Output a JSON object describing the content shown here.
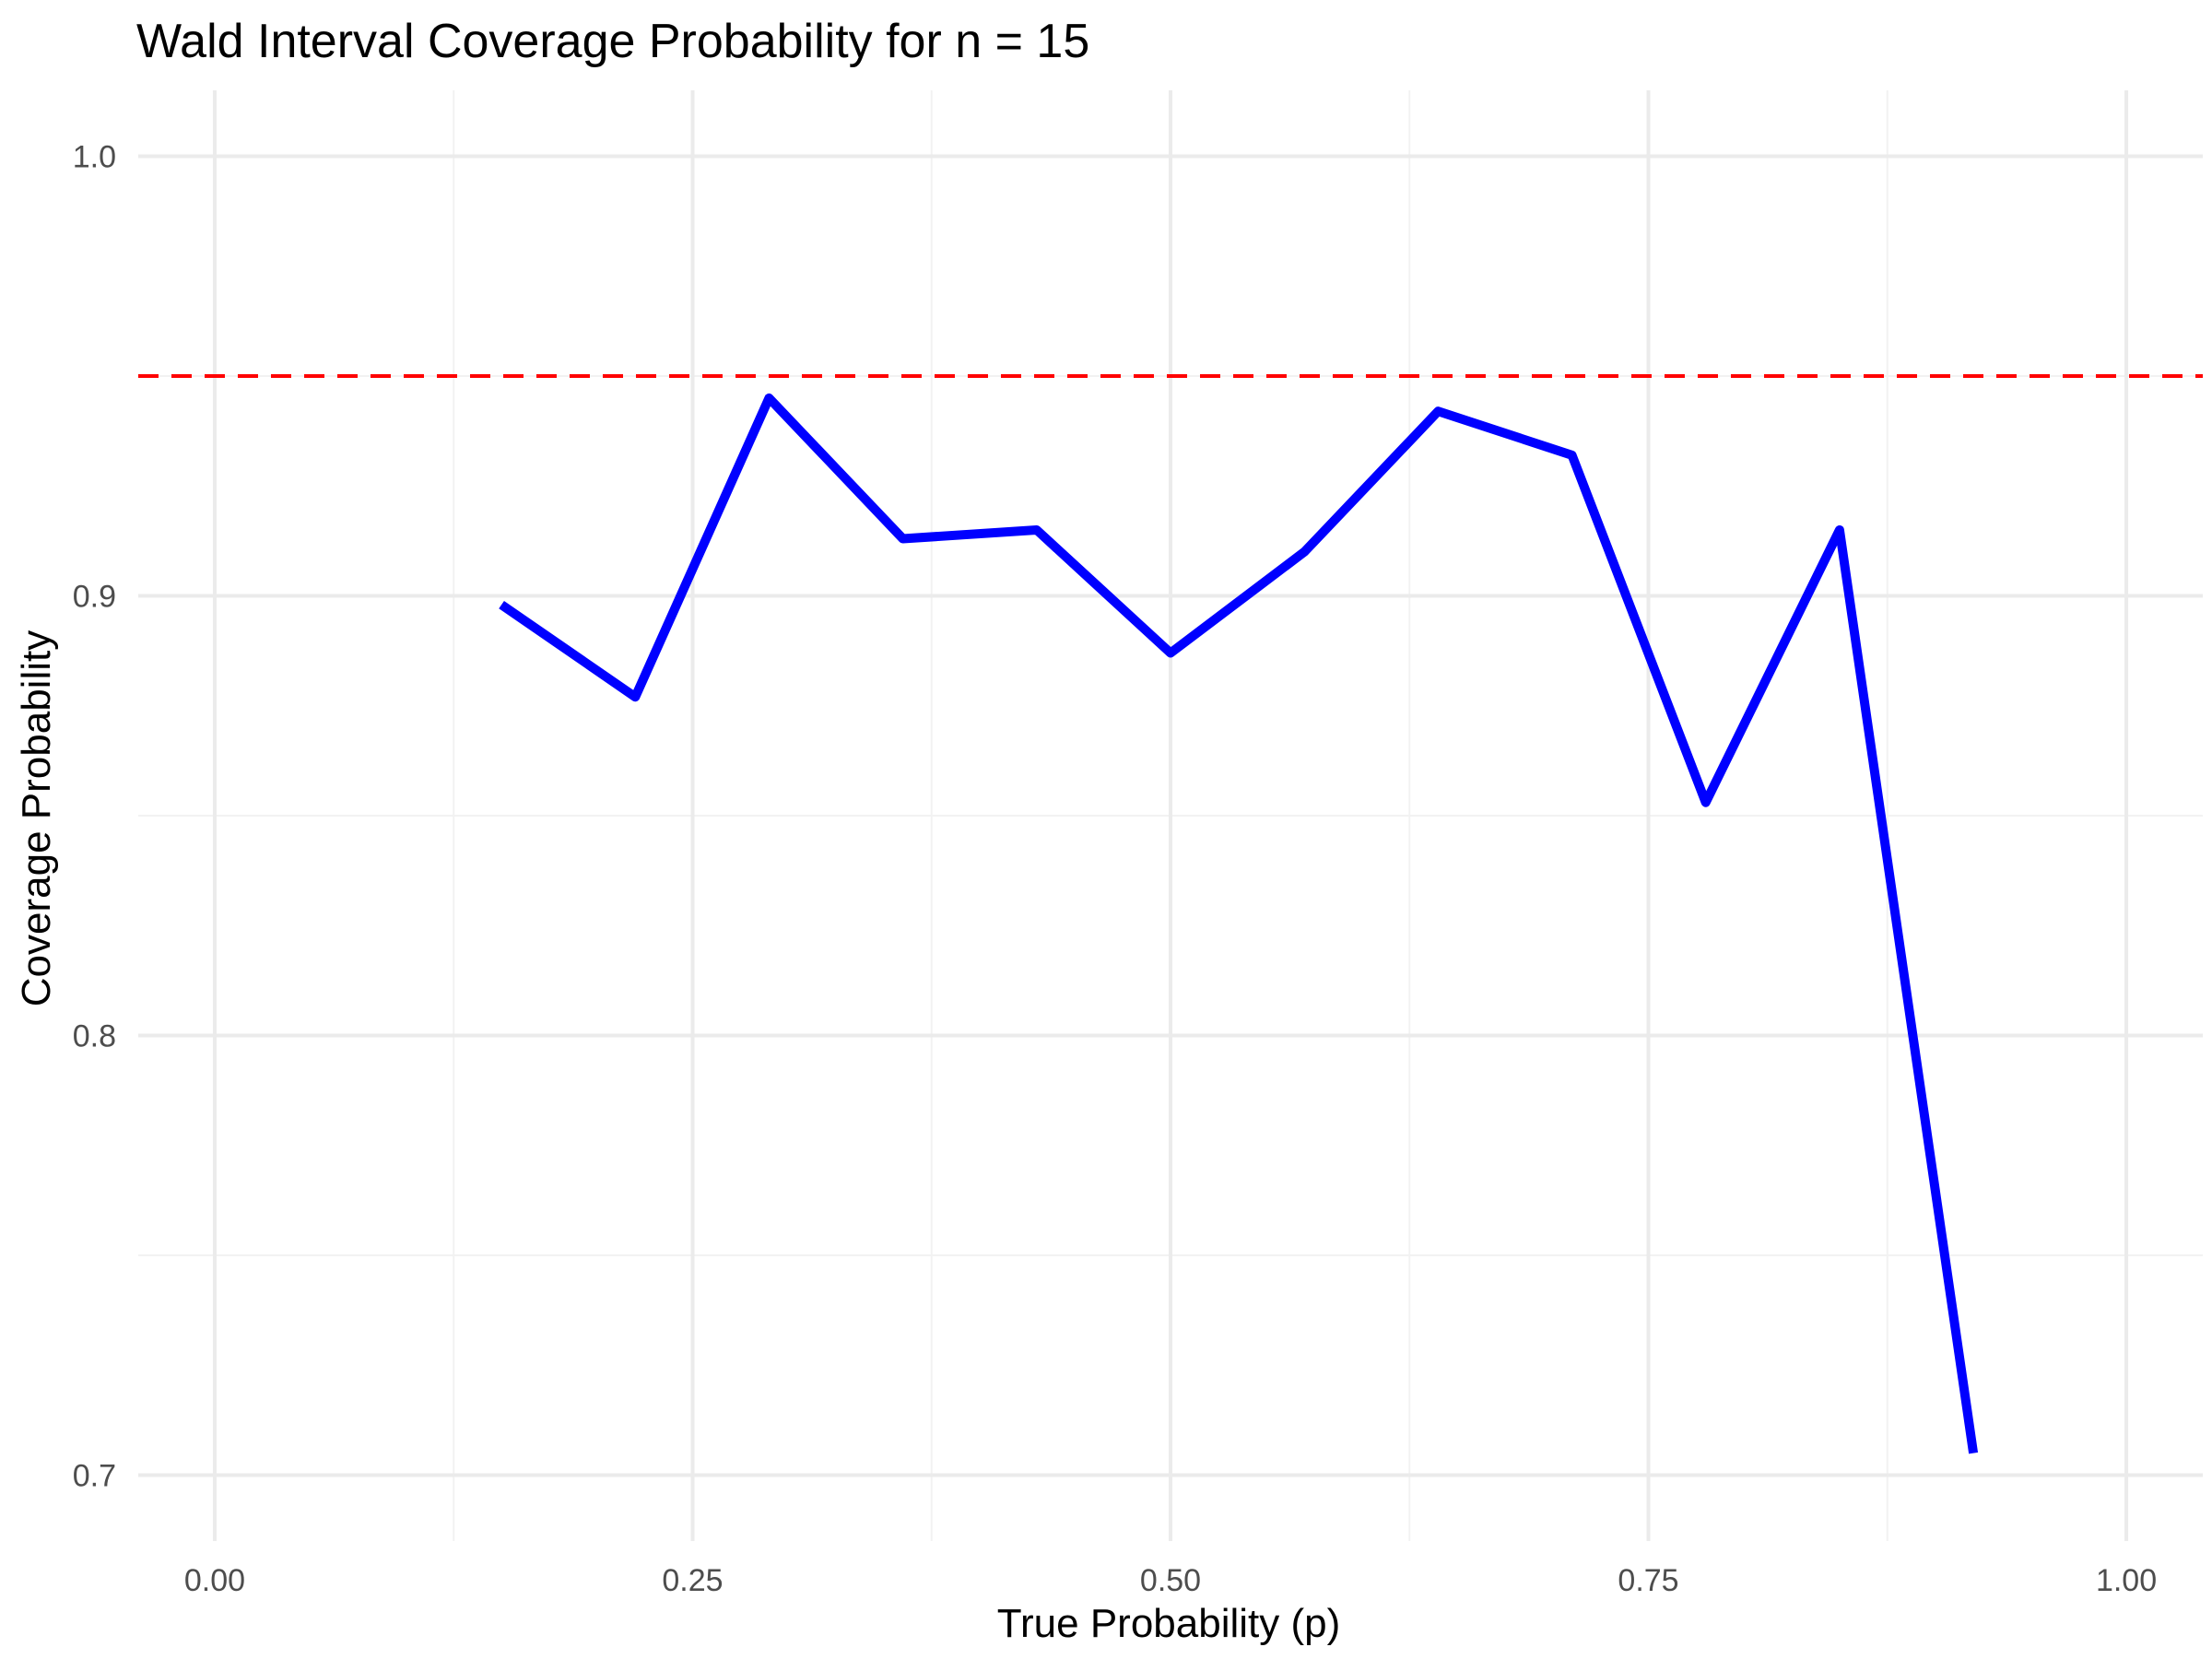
{
  "chart_data": {
    "type": "line",
    "title": "Wald Interval Coverage Probability for n = 15",
    "xlabel": "True Probability (p)",
    "ylabel": "Coverage Probability",
    "xlim": [
      -0.04,
      1.04
    ],
    "ylim": [
      0.685,
      1.015
    ],
    "x_ticks": [
      0.0,
      0.25,
      0.5,
      0.75,
      1.0
    ],
    "x_tick_labels": [
      "0.00",
      "0.25",
      "0.50",
      "0.75",
      "1.00"
    ],
    "x_minor_ticks": [
      0.125,
      0.375,
      0.625,
      0.875
    ],
    "y_ticks": [
      0.7,
      0.8,
      0.9,
      1.0
    ],
    "y_tick_labels": [
      "0.7",
      "0.8",
      "0.9",
      "1.0"
    ],
    "y_minor_ticks": [
      0.75,
      0.85,
      0.95
    ],
    "grid": true,
    "series": [
      {
        "x": [
          0.15,
          0.22,
          0.29,
          0.36,
          0.43,
          0.5,
          0.57,
          0.64,
          0.71,
          0.78,
          0.85,
          0.92
        ],
        "y": [
          0.898,
          0.877,
          0.945,
          0.913,
          0.915,
          0.887,
          0.91,
          0.942,
          0.932,
          0.853,
          0.915,
          0.705
        ],
        "color": "#0000ff"
      }
    ],
    "reference_line": {
      "y": 0.95,
      "color": "#ff0000",
      "style": "dashed"
    }
  }
}
